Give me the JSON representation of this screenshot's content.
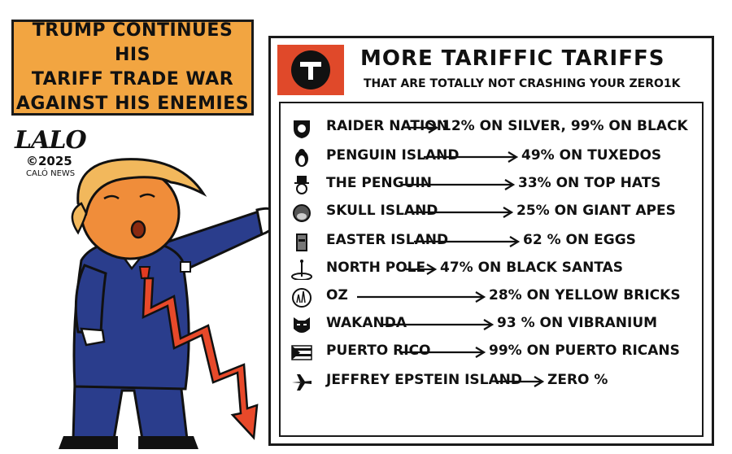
{
  "caption": {
    "text": "TRUMP CONTINUES HIS\nTARIFF TRADE WAR\nAGAINST HIS ENEMIES",
    "background": "#f2a541"
  },
  "signature": {
    "name": "LALO",
    "year": "©2025",
    "org": "CALÓ NEWS"
  },
  "board": {
    "title": "MORE TARIFFIC TARIFFS",
    "subtitle": "THAT ARE TOTALLY NOT CRASHING YOUR ZERO1K",
    "logo_color": "#e0492a",
    "logo_letter": "T"
  },
  "tariffs": [
    {
      "place": "RAIDER NATION",
      "rate": "12% ON SILVER, 99% ON BLACK",
      "icon": "raiders-shield-icon"
    },
    {
      "place": "PENGUIN ISLAND",
      "rate": "49% ON TUXEDOS",
      "icon": "penguin-icon"
    },
    {
      "place": "THE PENGUIN",
      "rate": "33% ON TOP HATS",
      "icon": "top-hat-villain-icon"
    },
    {
      "place": "SKULL ISLAND",
      "rate": "25% ON GIANT APES",
      "icon": "ape-face-icon"
    },
    {
      "place": "EASTER ISLAND",
      "rate": "62 % ON EGGS",
      "icon": "moai-head-icon"
    },
    {
      "place": "NORTH POLE",
      "rate": "47% ON BLACK SANTAS",
      "icon": "north-pole-icon"
    },
    {
      "place": "OZ",
      "rate": "28% ON YELLOW BRICKS",
      "icon": "emerald-city-icon"
    },
    {
      "place": "WAKANDA",
      "rate": "93 % ON VIBRANIUM",
      "icon": "panther-mask-icon"
    },
    {
      "place": "PUERTO RICO",
      "rate": "99% ON PUERTO RICANS",
      "icon": "puerto-rico-flag-icon"
    },
    {
      "place": "JEFFREY EPSTEIN ISLAND",
      "rate": "ZERO %",
      "icon": "airplane-icon"
    }
  ],
  "colors": {
    "suit": "#2a3d8c",
    "hair": "#f2b85c",
    "face": "#f08d3a",
    "tie": "#e23b22",
    "crash_arrow": "#e8492a"
  }
}
